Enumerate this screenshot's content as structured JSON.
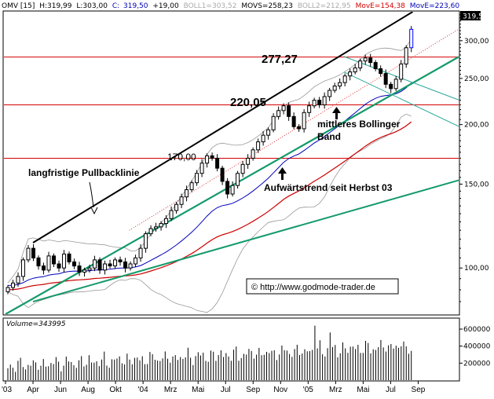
{
  "header": {
    "symbol": "OMV [15]",
    "high_label": "H:319,99",
    "low_label": "L:303,00",
    "close_label": "C:",
    "close_value": "319,50",
    "change": "+19,00",
    "boll1": "BOLL1=303,52",
    "movs": "MOVS=258,23",
    "boll2": "BOLL2=212,95",
    "move_red": "MovE=154,38",
    "move_blue": "MovE=223,60"
  },
  "price_badge": "319,50",
  "volume_label": "Volume=343995",
  "annotations": {
    "level_277": "277,27",
    "level_220": "220,05",
    "level_170": "170,00",
    "pullback": "langfristige Pullbacklinie",
    "bollinger_1": "mittleres Bollinger",
    "bollinger_2": "Band",
    "uptrend": "Aufwärtstrend seit Herbst 03",
    "copyright": "© http://www.godmode-trader.de"
  },
  "colors": {
    "candles": "#000000",
    "horizontal_levels": "#d40000",
    "trend_green": "#139a6a",
    "channel_teal": "#2aa89a",
    "resistance_black": "#000000",
    "ema_red": "#cc0000",
    "ema_blue": "#0000bb",
    "bollinger": "#999999",
    "badge": "#000000"
  },
  "chart_data": {
    "type": "candlestick",
    "price_axis": {
      "scale": "log",
      "ylim": [
        80,
        345
      ],
      "ticks": [
        100,
        150,
        200,
        250,
        300
      ]
    },
    "x_axis": {
      "start": "2003-01",
      "end": "2005-10",
      "tick_labels": [
        "'03",
        "Apr",
        "Jun",
        "Aug",
        "Okt",
        "'04",
        "Mrz",
        "Mai",
        "Jul",
        "Sep",
        "Nov",
        "'05",
        "Mrz",
        "Mai",
        "Jul",
        "Sep"
      ]
    },
    "price_weekly_approx": [
      91,
      93,
      96,
      104,
      110,
      105,
      101,
      99,
      106,
      102,
      100,
      107,
      103,
      101,
      98,
      99,
      100,
      104,
      99,
      102,
      101,
      104,
      103,
      100,
      102,
      105,
      110,
      118,
      121,
      122,
      124,
      127,
      132,
      136,
      141,
      146,
      151,
      158,
      166,
      172,
      170,
      162,
      152,
      143,
      149,
      158,
      165,
      170,
      177,
      184,
      190,
      195,
      208,
      214,
      219,
      208,
      198,
      196,
      212,
      219,
      225,
      220,
      229,
      236,
      241,
      245,
      253,
      258,
      263,
      272,
      276,
      270,
      262,
      256,
      243,
      238,
      249,
      268,
      290,
      317
    ],
    "horizontal_levels": [
      277.27,
      220.05,
      170.0
    ],
    "indicators": {
      "boll1": 303.52,
      "movs": 258.23,
      "boll2": 212.95,
      "move_red": 154.38,
      "move_blue": 223.6
    },
    "volume_axis": {
      "ticks": [
        200000,
        400000,
        600000
      ]
    },
    "last_volume": 343995
  }
}
